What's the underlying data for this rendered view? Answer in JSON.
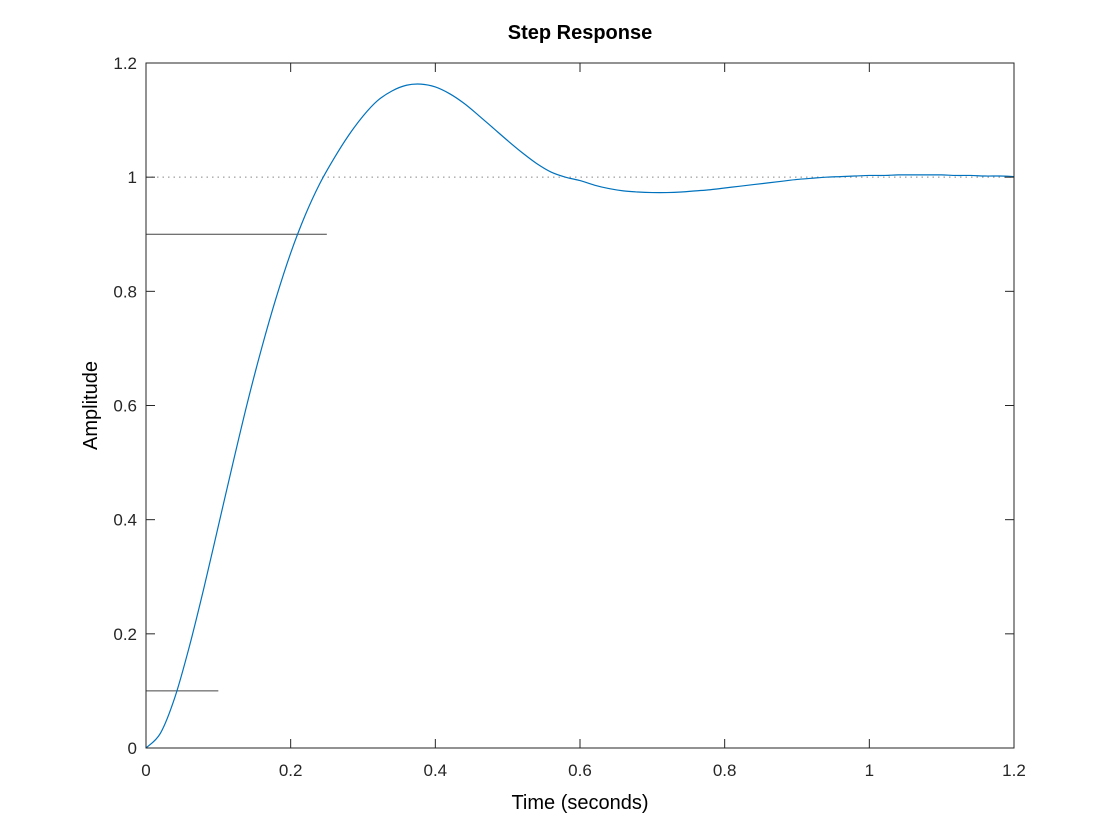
{
  "chart_data": {
    "type": "line",
    "title": "Step Response",
    "xlabel": "Time (seconds)",
    "ylabel": "Amplitude",
    "xlim": [
      0,
      1.2
    ],
    "ylim": [
      0,
      1.2
    ],
    "xticks": [
      0,
      0.2,
      0.4,
      0.6,
      0.8,
      1,
      1.2
    ],
    "yticks": [
      0,
      0.2,
      0.4,
      0.6,
      0.8,
      1,
      1.2
    ],
    "xtick_labels": [
      "0",
      "0.2",
      "0.4",
      "0.6",
      "0.8",
      "1",
      "1.2"
    ],
    "ytick_labels": [
      "0",
      "0.2",
      "0.4",
      "0.6",
      "0.8",
      "1",
      "1.2"
    ],
    "grid": false,
    "series": [
      {
        "color": "#0072BD",
        "x": [
          0,
          0.02,
          0.04,
          0.06,
          0.08,
          0.1,
          0.12,
          0.14,
          0.16,
          0.18,
          0.2,
          0.22,
          0.24,
          0.26,
          0.28,
          0.3,
          0.32,
          0.34,
          0.36,
          0.38,
          0.4,
          0.42,
          0.44,
          0.46,
          0.48,
          0.5,
          0.52,
          0.54,
          0.56,
          0.58,
          0.6,
          0.62,
          0.64,
          0.66,
          0.68,
          0.7,
          0.72,
          0.74,
          0.76,
          0.78,
          0.8,
          0.82,
          0.84,
          0.86,
          0.88,
          0.9,
          0.92,
          0.94,
          0.96,
          0.98,
          1.0,
          1.02,
          1.04,
          1.06,
          1.08,
          1.1,
          1.12,
          1.14,
          1.16,
          1.18,
          1.2
        ],
        "y": [
          0,
          0.026,
          0.089,
          0.178,
          0.28,
          0.389,
          0.498,
          0.604,
          0.701,
          0.789,
          0.867,
          0.933,
          0.988,
          1.033,
          1.073,
          1.107,
          1.134,
          1.151,
          1.161,
          1.163,
          1.158,
          1.146,
          1.129,
          1.108,
          1.086,
          1.064,
          1.043,
          1.024,
          1.009,
          1.0,
          0.994,
          0.986,
          0.98,
          0.976,
          0.974,
          0.973,
          0.973,
          0.974,
          0.976,
          0.978,
          0.981,
          0.984,
          0.987,
          0.99,
          0.993,
          0.996,
          0.998,
          1.0,
          1.001,
          1.002,
          1.003,
          1.003,
          1.004,
          1.004,
          1.004,
          1.004,
          1.003,
          1.003,
          1.002,
          1.002,
          1.001
        ]
      }
    ],
    "reference_lines": [
      {
        "kind": "steady-state",
        "y": 1.0,
        "x_from": 0,
        "x_to": 1.2,
        "style": "dotted",
        "color": "#888888"
      },
      {
        "kind": "rise-time-upper",
        "y": 0.9,
        "x_from": 0,
        "x_to": 0.25,
        "style": "solid",
        "color": "#444444"
      },
      {
        "kind": "rise-time-lower",
        "y": 0.1,
        "x_from": 0,
        "x_to": 0.1,
        "style": "solid",
        "color": "#444444"
      }
    ]
  }
}
